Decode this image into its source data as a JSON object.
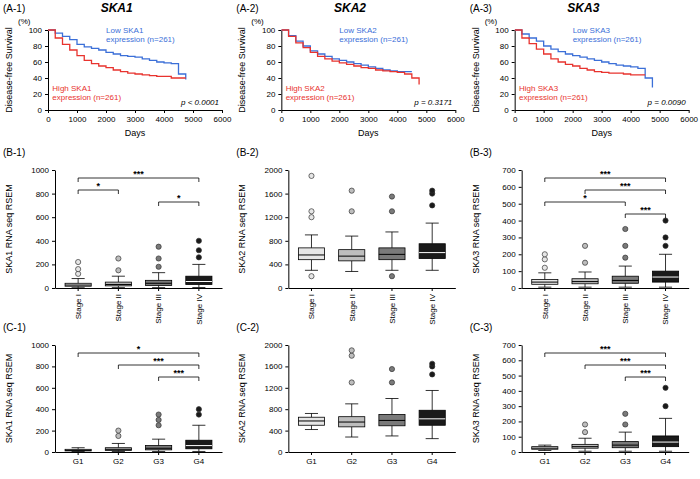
{
  "chart_data": [
    {
      "type": "step",
      "title": "SKA1",
      "xlabel": "Days",
      "ylabel": "Disease-free Survival",
      "x": [
        0,
        250,
        500,
        750,
        1000,
        1250,
        1500,
        1750,
        2000,
        2250,
        2500,
        2750,
        3000,
        3250,
        3500,
        3750,
        4000,
        4250,
        4500,
        4750
      ],
      "series": [
        {
          "name": "Low SKA1 expression (n=261)",
          "color": "#3b6fd8",
          "values": [
            100,
            96,
            92,
            88,
            82,
            79,
            77,
            75,
            72,
            70,
            68,
            67,
            66,
            64,
            62,
            60,
            59,
            58,
            45,
            38
          ]
        },
        {
          "name": "High SKA1 expression (n=261)",
          "color": "#e8332e",
          "values": [
            100,
            90,
            82,
            75,
            68,
            62,
            58,
            55,
            53,
            50,
            48,
            46,
            45,
            44,
            43,
            42,
            42,
            40,
            40,
            40
          ]
        }
      ],
      "xlim": [
        0,
        6000
      ],
      "xticks": [
        0,
        1000,
        2000,
        3000,
        4000,
        5000,
        6000
      ],
      "ylim": [
        0,
        100
      ],
      "yticks": [
        0,
        20,
        40,
        60,
        80,
        100
      ],
      "annotations": [
        "(A-1)",
        "(%)",
        "p < 0.0001"
      ]
    },
    {
      "type": "step",
      "title": "SKA2",
      "xlabel": "Days",
      "ylabel": "Disease-free Survival",
      "x": [
        0,
        250,
        500,
        750,
        1000,
        1250,
        1500,
        1750,
        2000,
        2250,
        2500,
        2750,
        3000,
        3250,
        3500,
        3750,
        4000,
        4250,
        4500,
        4750
      ],
      "series": [
        {
          "name": "Low SKA2 expression (n=261)",
          "color": "#3b6fd8",
          "values": [
            100,
            93,
            86,
            80,
            74,
            70,
            67,
            64,
            62,
            60,
            58,
            56,
            54,
            52,
            50,
            49,
            48,
            48,
            48,
            null
          ]
        },
        {
          "name": "High SKA2 expression (n=261)",
          "color": "#e8332e",
          "values": [
            100,
            92,
            84,
            78,
            72,
            67,
            64,
            61,
            59,
            57,
            55,
            53,
            52,
            50,
            49,
            48,
            47,
            45,
            40,
            32
          ]
        }
      ],
      "xlim": [
        0,
        6000
      ],
      "xticks": [
        0,
        1000,
        2000,
        3000,
        4000,
        5000,
        6000
      ],
      "ylim": [
        0,
        100
      ],
      "yticks": [
        0,
        20,
        40,
        60,
        80,
        100
      ],
      "annotations": [
        "(A-2)",
        "(%)",
        "p = 0.3171"
      ]
    },
    {
      "type": "step",
      "title": "SKA3",
      "xlabel": "Days",
      "ylabel": "Disease-free Survival",
      "x": [
        0,
        250,
        500,
        750,
        1000,
        1250,
        1500,
        1750,
        2000,
        2250,
        2500,
        2750,
        3000,
        3250,
        3500,
        3750,
        4000,
        4250,
        4500,
        4750
      ],
      "series": [
        {
          "name": "Low SKA3 expression (n=261)",
          "color": "#3b6fd8",
          "values": [
            100,
            95,
            90,
            86,
            80,
            76,
            73,
            70,
            68,
            66,
            64,
            62,
            60,
            58,
            56,
            55,
            54,
            52,
            40,
            28
          ]
        },
        {
          "name": "High SKA3 expression (n=261)",
          "color": "#e8332e",
          "values": [
            100,
            90,
            83,
            76,
            70,
            64,
            60,
            57,
            55,
            52,
            50,
            48,
            47,
            46,
            46,
            45,
            44,
            44,
            44,
            null
          ]
        }
      ],
      "xlim": [
        0,
        6000
      ],
      "xticks": [
        0,
        1000,
        2000,
        3000,
        4000,
        5000,
        6000
      ],
      "ylim": [
        0,
        100
      ],
      "yticks": [
        0,
        20,
        40,
        60,
        80,
        100
      ],
      "annotations": [
        "(A-3)",
        "(%)",
        "p = 0.0090"
      ]
    },
    {
      "type": "box",
      "ylabel": "SKA1 RNA seq RSEM",
      "categories": [
        "Stage I",
        "Stage II",
        "Stage III",
        "Stage IV"
      ],
      "colors": [
        "#e6e6e6",
        "#bdbdbd",
        "#7a7a7a",
        "#1a1a1a"
      ],
      "boxes": [
        {
          "min": 2,
          "q1": 15,
          "median": 25,
          "q3": 40,
          "max": 80,
          "outliers": [
            120,
            160,
            220
          ]
        },
        {
          "min": 3,
          "q1": 18,
          "median": 30,
          "q3": 50,
          "max": 100,
          "outliers": [
            150,
            250
          ]
        },
        {
          "min": 3,
          "q1": 22,
          "median": 40,
          "q3": 65,
          "max": 130,
          "outliers": [
            180,
            250,
            350
          ]
        },
        {
          "min": 4,
          "q1": 30,
          "median": 55,
          "q3": 100,
          "max": 200,
          "outliers": [
            260,
            320,
            400
          ]
        }
      ],
      "ylim": [
        0,
        1000
      ],
      "yticks": [
        0,
        200,
        400,
        600,
        800,
        1000
      ],
      "annotations": [
        "(B-1)",
        {
          "text": "***",
          "from": 0,
          "to": 3
        },
        {
          "text": "*",
          "from": 0,
          "to": 1
        },
        {
          "text": "*",
          "from": 2,
          "to": 3
        }
      ]
    },
    {
      "type": "box",
      "ylabel": "SKA2 RNA seq RSEM",
      "categories": [
        "Stage I",
        "Stage II",
        "Stage III",
        "Stage IV"
      ],
      "colors": [
        "#e6e6e6",
        "#bdbdbd",
        "#7a7a7a",
        "#1a1a1a"
      ],
      "boxes": [
        {
          "min": 300,
          "q1": 480,
          "median": 560,
          "q3": 680,
          "max": 900,
          "outliers": [
            200,
            1200,
            1300,
            1900
          ]
        },
        {
          "min": 280,
          "q1": 460,
          "median": 540,
          "q3": 650,
          "max": 880,
          "outliers": [
            1300,
            1650
          ]
        },
        {
          "min": 300,
          "q1": 480,
          "median": 570,
          "q3": 680,
          "max": 950,
          "outliers": [
            200,
            1300,
            1550
          ]
        },
        {
          "min": 300,
          "q1": 500,
          "median": 600,
          "q3": 750,
          "max": 1100,
          "outliers": [
            1400,
            1600,
            1650
          ]
        }
      ],
      "ylim": [
        0,
        2000
      ],
      "yticks": [
        0,
        400,
        800,
        1200,
        1600,
        2000
      ],
      "annotations": [
        "(B-2)"
      ]
    },
    {
      "type": "box",
      "ylabel": "SKA3 RNA seq RSEM",
      "categories": [
        "Stage I",
        "Stage II",
        "Stage III",
        "Stage IV"
      ],
      "colors": [
        "#e6e6e6",
        "#bdbdbd",
        "#7a7a7a",
        "#1a1a1a"
      ],
      "boxes": [
        {
          "min": 5,
          "q1": 22,
          "median": 35,
          "q3": 50,
          "max": 90,
          "outliers": [
            120,
            170,
            200
          ]
        },
        {
          "min": 5,
          "q1": 25,
          "median": 38,
          "q3": 55,
          "max": 95,
          "outliers": [
            150,
            250
          ]
        },
        {
          "min": 5,
          "q1": 28,
          "median": 45,
          "q3": 70,
          "max": 130,
          "outliers": [
            180,
            250,
            350
          ]
        },
        {
          "min": 5,
          "q1": 35,
          "median": 65,
          "q3": 100,
          "max": 200,
          "outliers": [
            250,
            300,
            400
          ]
        }
      ],
      "ylim": [
        0,
        700
      ],
      "yticks": [
        0,
        100,
        200,
        300,
        400,
        500,
        600,
        700
      ],
      "annotations": [
        "(B-3)",
        {
          "text": "***",
          "from": 0,
          "to": 3
        },
        {
          "text": "***",
          "from": 1,
          "to": 3
        },
        {
          "text": "*",
          "from": 0,
          "to": 2
        },
        {
          "text": "***",
          "from": 2,
          "to": 3
        }
      ]
    },
    {
      "type": "box",
      "ylabel": "SKA1 RNA seq RSEM",
      "categories": [
        "G1",
        "G2",
        "G3",
        "G4"
      ],
      "colors": [
        "#e6e6e6",
        "#bdbdbd",
        "#7a7a7a",
        "#1a1a1a"
      ],
      "boxes": [
        {
          "min": 5,
          "q1": 10,
          "median": 15,
          "q3": 25,
          "max": 40,
          "outliers": []
        },
        {
          "min": 5,
          "q1": 15,
          "median": 25,
          "q3": 40,
          "max": 80,
          "outliers": [
            150,
            200
          ]
        },
        {
          "min": 5,
          "q1": 20,
          "median": 35,
          "q3": 60,
          "max": 120,
          "outliers": [
            250,
            300,
            350
          ]
        },
        {
          "min": 5,
          "q1": 30,
          "median": 60,
          "q3": 110,
          "max": 250,
          "outliers": [
            350,
            400
          ]
        }
      ],
      "ylim": [
        0,
        1000
      ],
      "yticks": [
        0,
        200,
        400,
        600,
        800,
        1000
      ],
      "annotations": [
        "(C-1)",
        {
          "text": "*",
          "from": 0,
          "to": 3
        },
        {
          "text": "***",
          "from": 1,
          "to": 3
        },
        {
          "text": "***",
          "from": 2,
          "to": 3
        }
      ]
    },
    {
      "type": "box",
      "ylabel": "SKA2 RNA seq RSEM",
      "categories": [
        "G1",
        "G2",
        "G3",
        "G4"
      ],
      "colors": [
        "#e6e6e6",
        "#bdbdbd",
        "#7a7a7a",
        "#1a1a1a"
      ],
      "boxes": [
        {
          "min": 420,
          "q1": 500,
          "median": 580,
          "q3": 650,
          "max": 720,
          "outliers": []
        },
        {
          "min": 280,
          "q1": 470,
          "median": 560,
          "q3": 660,
          "max": 900,
          "outliers": [
            1300,
            1800,
            1900
          ]
        },
        {
          "min": 300,
          "q1": 490,
          "median": 590,
          "q3": 700,
          "max": 1000,
          "outliers": [
            1300,
            1550
          ]
        },
        {
          "min": 250,
          "q1": 500,
          "median": 620,
          "q3": 780,
          "max": 1150,
          "outliers": [
            1450,
            1600,
            1650
          ]
        }
      ],
      "ylim": [
        0,
        2000
      ],
      "yticks": [
        0,
        400,
        800,
        1200,
        1600,
        2000
      ],
      "annotations": [
        "(C-2)"
      ]
    },
    {
      "type": "box",
      "ylabel": "SKA3 RNA seq RSEM",
      "categories": [
        "G1",
        "G2",
        "G3",
        "G4"
      ],
      "colors": [
        "#e6e6e6",
        "#bdbdbd",
        "#7a7a7a",
        "#1a1a1a"
      ],
      "boxes": [
        {
          "min": 10,
          "q1": 18,
          "median": 25,
          "q3": 35,
          "max": 45,
          "outliers": []
        },
        {
          "min": 5,
          "q1": 25,
          "median": 35,
          "q3": 50,
          "max": 90,
          "outliers": [
            130,
            180
          ]
        },
        {
          "min": 5,
          "q1": 28,
          "median": 45,
          "q3": 68,
          "max": 130,
          "outliers": [
            180,
            250
          ]
        },
        {
          "min": 5,
          "q1": 35,
          "median": 65,
          "q3": 105,
          "max": 220,
          "outliers": [
            300,
            420
          ]
        }
      ],
      "ylim": [
        0,
        700
      ],
      "yticks": [
        0,
        100,
        200,
        300,
        400,
        500,
        600,
        700
      ],
      "annotations": [
        "(C-3)",
        {
          "text": "***",
          "from": 0,
          "to": 3
        },
        {
          "text": "***",
          "from": 1,
          "to": 3
        },
        {
          "text": "***",
          "from": 2,
          "to": 3
        }
      ]
    }
  ]
}
